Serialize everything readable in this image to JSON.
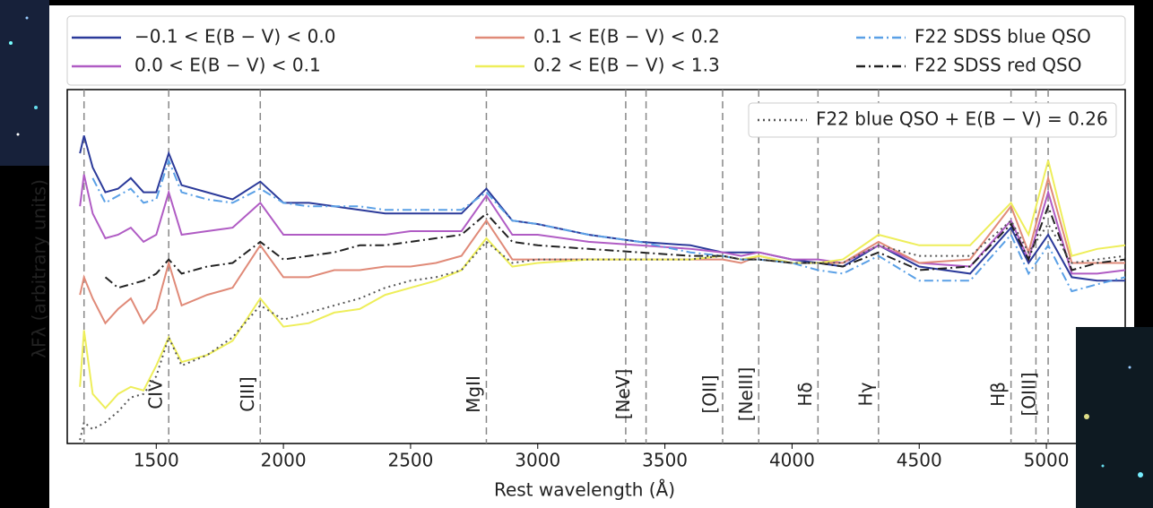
{
  "chart_data": {
    "type": "line",
    "ylabel": "λFλ (arbitrary units)",
    "xlabel": "Rest wavelength (Å)",
    "xlim": [
      1150,
      5310
    ],
    "ylim": [
      0,
      100
    ],
    "xticks": [
      1500,
      2000,
      2500,
      3000,
      3500,
      4000,
      4500,
      5000
    ],
    "legend": "top",
    "x": [
      1200,
      1216,
      1250,
      1300,
      1350,
      1400,
      1450,
      1500,
      1549,
      1600,
      1700,
      1800,
      1909,
      2000,
      2100,
      2200,
      2300,
      2400,
      2500,
      2600,
      2700,
      2798,
      2900,
      3000,
      3200,
      3400,
      3600,
      3727,
      3800,
      3869,
      4000,
      4102,
      4200,
      4340,
      4500,
      4700,
      4861,
      4930,
      5007,
      5100,
      5200,
      5310
    ],
    "series": [
      {
        "name": "−0.1 < E(B − V) < 0.0",
        "color": "#2b3a9a",
        "style": "solid",
        "values": [
          82,
          87,
          78,
          71,
          72,
          75,
          71,
          71,
          82,
          73,
          71,
          69,
          74,
          68,
          68,
          67,
          66,
          65,
          65,
          65,
          65,
          72,
          63,
          62,
          59,
          57,
          56,
          54,
          54,
          54,
          52,
          51,
          50,
          56,
          50,
          48,
          61,
          51,
          59,
          47,
          46,
          46
        ]
      },
      {
        "name": "0.0 < E(B − V) < 0.1",
        "color": "#b05cc4",
        "style": "solid",
        "values": [
          67,
          76,
          65,
          58,
          59,
          61,
          57,
          59,
          71,
          59,
          60,
          61,
          68,
          59,
          59,
          59,
          59,
          59,
          60,
          60,
          60,
          70,
          59,
          59,
          57,
          56,
          55,
          54,
          53,
          54,
          52,
          52,
          51,
          56,
          51,
          50,
          63,
          52,
          71,
          48,
          48,
          49
        ]
      },
      {
        "name": "0.1 < E(B − V) < 0.2",
        "color": "#e08a78",
        "style": "solid",
        "values": [
          42,
          47,
          41,
          34,
          38,
          41,
          34,
          38,
          51,
          39,
          42,
          44,
          56,
          47,
          47,
          49,
          49,
          50,
          50,
          51,
          53,
          63,
          52,
          52,
          52,
          52,
          52,
          52,
          51,
          53,
          51,
          51,
          51,
          57,
          51,
          52,
          67,
          54,
          75,
          51,
          51,
          51
        ]
      },
      {
        "name": "0.2 < E(B − V) < 1.3",
        "color": "#eeee5a",
        "style": "solid",
        "values": [
          16,
          32,
          14,
          10,
          14,
          16,
          15,
          22,
          30,
          23,
          25,
          29,
          41,
          33,
          34,
          37,
          38,
          42,
          44,
          46,
          49,
          58,
          50,
          51,
          52,
          52,
          52,
          53,
          52,
          53,
          51,
          51,
          52,
          59,
          56,
          56,
          68,
          59,
          80,
          53,
          55,
          56
        ]
      },
      {
        "name": "F22 SDSS blue QSO",
        "color": "#5aa0e6",
        "style": "dashdot",
        "values": [
          null,
          null,
          75,
          68,
          70,
          72,
          68,
          69,
          80,
          71,
          69,
          68,
          72,
          68,
          67,
          67,
          67,
          66,
          66,
          66,
          66,
          71,
          63,
          62,
          59,
          57,
          54,
          53,
          52,
          52,
          51,
          49,
          48,
          53,
          46,
          46,
          59,
          48,
          56,
          43,
          45,
          47
        ]
      },
      {
        "name": "F22 SDSS red QSO",
        "color": "#222222",
        "style": "dashdot",
        "values": [
          null,
          null,
          null,
          47,
          44,
          45,
          46,
          48,
          52,
          48,
          50,
          51,
          57,
          52,
          53,
          54,
          56,
          56,
          57,
          58,
          59,
          65,
          57,
          56,
          55,
          54,
          53,
          53,
          52,
          52,
          51,
          51,
          50,
          54,
          49,
          50,
          62,
          52,
          67,
          49,
          51,
          52
        ]
      },
      {
        "name": "F22 blue QSO + E(B − V) = 0.26",
        "color": "#555555",
        "style": "dotted",
        "legend": "upper right",
        "values": [
          1,
          6,
          4,
          6,
          9,
          13,
          14,
          19,
          30,
          22,
          25,
          30,
          39,
          35,
          37,
          39,
          41,
          44,
          46,
          47,
          49,
          57,
          51,
          52,
          52,
          52,
          52,
          53,
          52,
          52,
          51,
          51,
          51,
          56,
          53,
          53,
          63,
          54,
          62,
          51,
          52,
          53
        ]
      }
    ],
    "lines": [
      {
        "x": [
          1216
        ]
      },
      {
        "x": [
          1549
        ],
        "label": "CIV"
      },
      {
        "x": [
          1909
        ],
        "label": "CIII]"
      },
      {
        "x": [
          2798
        ],
        "label": "MgII"
      },
      {
        "x": [
          3346,
          3426
        ],
        "label": "[NeV]"
      },
      {
        "x": [
          3727
        ],
        "label": "[OII]"
      },
      {
        "x": [
          3869
        ],
        "label": "[NeIII]"
      },
      {
        "x": [
          4102
        ],
        "label": "Hδ"
      },
      {
        "x": [
          4340
        ],
        "label": "Hγ"
      },
      {
        "x": [
          4861
        ],
        "label": "Hβ"
      },
      {
        "x": [
          4959,
          5007
        ],
        "label": "[OIII]"
      }
    ]
  }
}
